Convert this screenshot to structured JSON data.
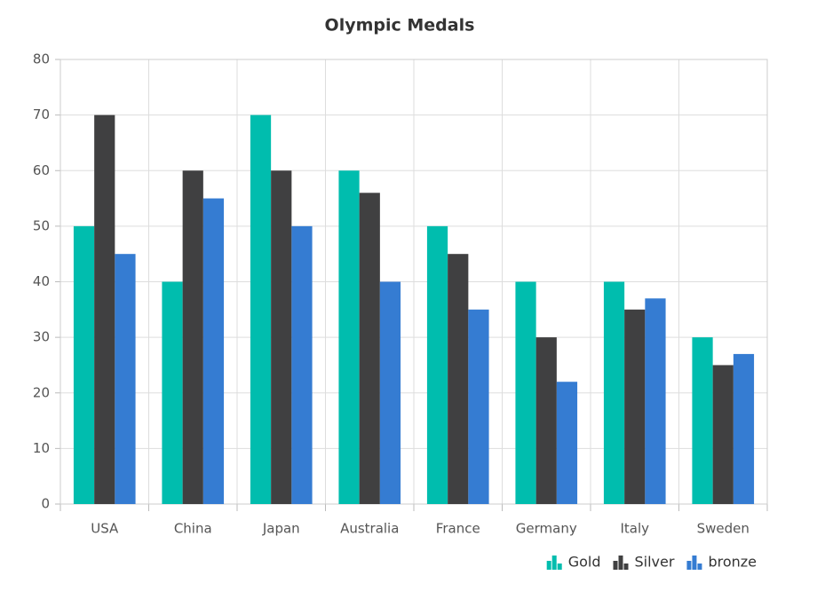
{
  "chart_data": {
    "type": "bar",
    "title": "Olympic Medals",
    "categories": [
      "USA",
      "China",
      "Japan",
      "Australia",
      "France",
      "Germany",
      "Italy",
      "Sweden"
    ],
    "series": [
      {
        "name": "Gold",
        "color": "#00bdae",
        "values": [
          50,
          40,
          70,
          60,
          50,
          40,
          40,
          30
        ]
      },
      {
        "name": "Silver",
        "color": "#404041",
        "values": [
          70,
          60,
          60,
          56,
          45,
          30,
          35,
          25
        ]
      },
      {
        "name": "bronze",
        "color": "#357cd2",
        "values": [
          45,
          55,
          50,
          40,
          35,
          22,
          37,
          27
        ]
      }
    ],
    "ylim": [
      0,
      80
    ],
    "yticks": [
      0,
      10,
      20,
      30,
      40,
      50,
      60,
      70,
      80
    ],
    "grid": true,
    "legend": "bottom-right"
  }
}
